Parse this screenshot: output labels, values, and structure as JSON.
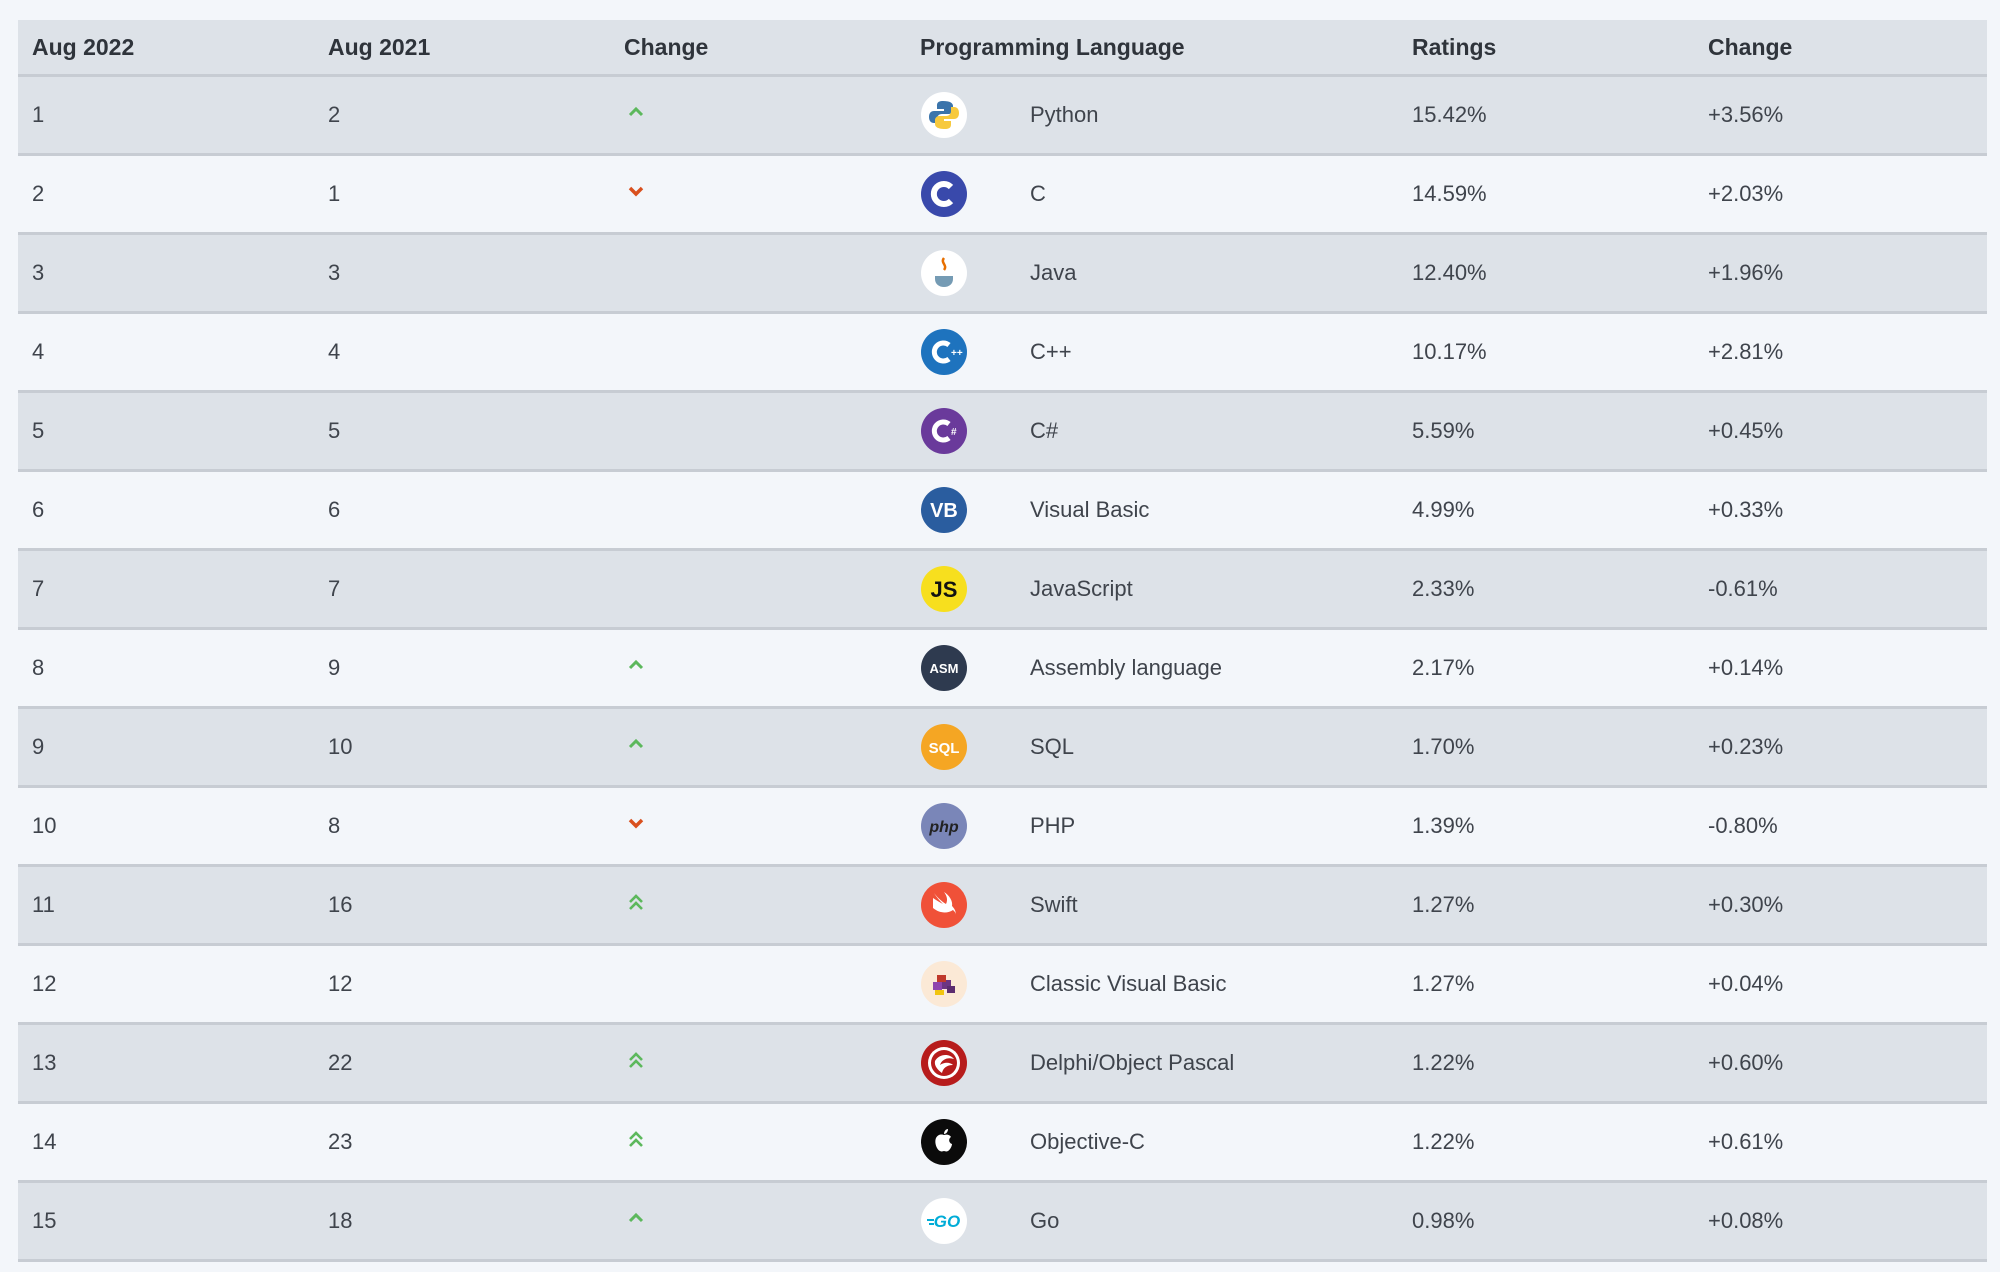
{
  "headers": [
    "Aug 2022",
    "Aug 2021",
    "Change",
    "Programming Language",
    "Ratings",
    "Change"
  ],
  "rows": [
    {
      "rank": "1",
      "prev": "2",
      "trend": "up",
      "language": "Python",
      "ratings": "15.42%",
      "change": "+3.56%",
      "logo": "python-icon"
    },
    {
      "rank": "2",
      "prev": "1",
      "trend": "down",
      "language": "C",
      "ratings": "14.59%",
      "change": "+2.03%",
      "logo": "c-icon"
    },
    {
      "rank": "3",
      "prev": "3",
      "trend": "none",
      "language": "Java",
      "ratings": "12.40%",
      "change": "+1.96%",
      "logo": "java-icon"
    },
    {
      "rank": "4",
      "prev": "4",
      "trend": "none",
      "language": "C++",
      "ratings": "10.17%",
      "change": "+2.81%",
      "logo": "cpp-icon"
    },
    {
      "rank": "5",
      "prev": "5",
      "trend": "none",
      "language": "C#",
      "ratings": "5.59%",
      "change": "+0.45%",
      "logo": "csharp-icon"
    },
    {
      "rank": "6",
      "prev": "6",
      "trend": "none",
      "language": "Visual Basic",
      "ratings": "4.99%",
      "change": "+0.33%",
      "logo": "visual-basic-icon"
    },
    {
      "rank": "7",
      "prev": "7",
      "trend": "none",
      "language": "JavaScript",
      "ratings": "2.33%",
      "change": "-0.61%",
      "logo": "javascript-icon"
    },
    {
      "rank": "8",
      "prev": "9",
      "trend": "up",
      "language": "Assembly language",
      "ratings": "2.17%",
      "change": "+0.14%",
      "logo": "assembly-icon"
    },
    {
      "rank": "9",
      "prev": "10",
      "trend": "up",
      "language": "SQL",
      "ratings": "1.70%",
      "change": "+0.23%",
      "logo": "sql-icon"
    },
    {
      "rank": "10",
      "prev": "8",
      "trend": "down",
      "language": "PHP",
      "ratings": "1.39%",
      "change": "-0.80%",
      "logo": "php-icon"
    },
    {
      "rank": "11",
      "prev": "16",
      "trend": "double-up",
      "language": "Swift",
      "ratings": "1.27%",
      "change": "+0.30%",
      "logo": "swift-icon"
    },
    {
      "rank": "12",
      "prev": "12",
      "trend": "none",
      "language": "Classic Visual Basic",
      "ratings": "1.27%",
      "change": "+0.04%",
      "logo": "classic-visual-basic-icon"
    },
    {
      "rank": "13",
      "prev": "22",
      "trend": "double-up",
      "language": "Delphi/Object Pascal",
      "ratings": "1.22%",
      "change": "+0.60%",
      "logo": "delphi-icon"
    },
    {
      "rank": "14",
      "prev": "23",
      "trend": "double-up",
      "language": "Objective-C",
      "ratings": "1.22%",
      "change": "+0.61%",
      "logo": "objective-c-icon"
    },
    {
      "rank": "15",
      "prev": "18",
      "trend": "up",
      "language": "Go",
      "ratings": "0.98%",
      "change": "+0.08%",
      "logo": "go-icon"
    }
  ],
  "logo_text": {
    "vb": "VB",
    "js": "JS",
    "asm": "ASM",
    "sql": "SQL",
    "php": "php",
    "go": "GO"
  },
  "colors": {
    "up": "#5cb85c",
    "down": "#d9501e"
  }
}
